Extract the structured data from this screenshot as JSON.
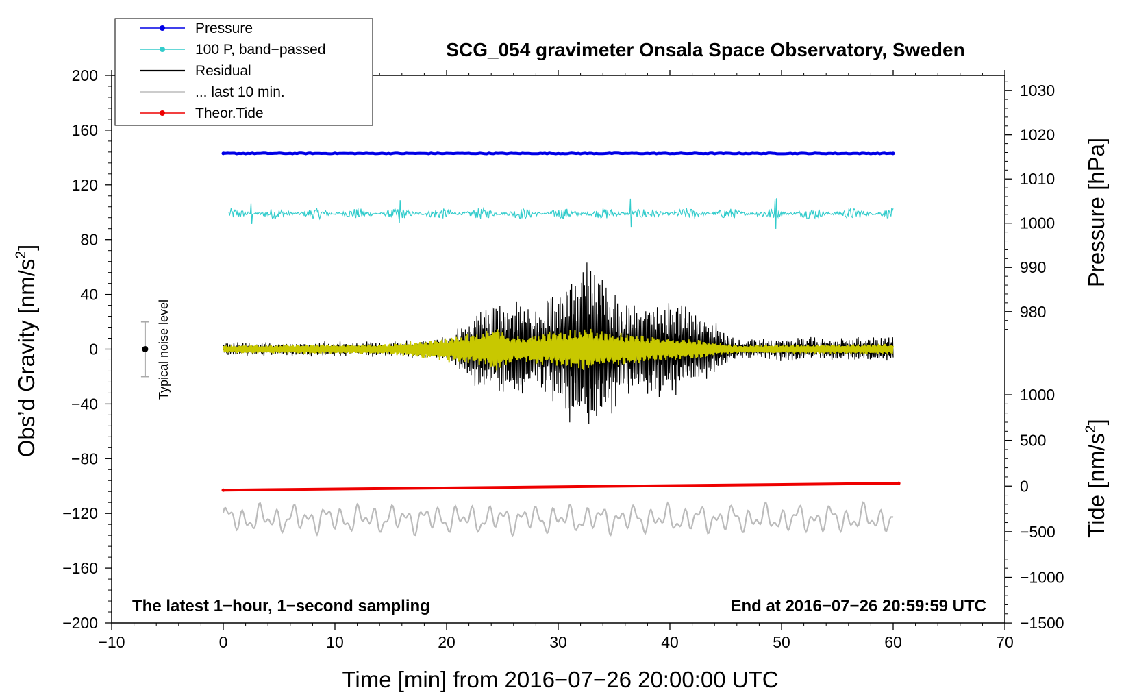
{
  "chart_data": {
    "type": "line",
    "title": "SCG_054 gravimeter Onsala Space Observatory, Sweden",
    "xlabel": "Time [min] from 2016−07−26 20:00:00 UTC",
    "ylabel_main": "Obs’d Gravity [nm/s",
    "ylabel_pressure": "Pressure [hPa]",
    "ylabel_tide": "Tide [nm/s",
    "unit_superscript": "2",
    "unit_close": "]",
    "xlim": [
      -10,
      70
    ],
    "ylim": [
      -200,
      200
    ],
    "x_ticks": [
      -10,
      0,
      10,
      20,
      30,
      40,
      50,
      60,
      70
    ],
    "x_tick_labels": [
      "−10",
      "0",
      "10",
      "20",
      "30",
      "40",
      "50",
      "60",
      "70"
    ],
    "y_ticks": [
      200,
      160,
      120,
      80,
      40,
      0,
      -40,
      -80,
      -120,
      -160,
      -200
    ],
    "y_tick_labels": [
      "200",
      "160",
      "120",
      "80",
      "40",
      "0",
      "−40",
      "−80",
      "−120",
      "−160",
      "−200"
    ],
    "pressure_ticks": [
      1030,
      1020,
      1010,
      1000,
      990,
      980
    ],
    "pressure_tick_labels": [
      "1030",
      "1020",
      "1010",
      "1000",
      "990",
      "980"
    ],
    "pressure_axis_map": {
      "value_at_zero": 951,
      "units_per_value": 3.23
    },
    "tide_ticks": [
      1000,
      500,
      0,
      -500,
      -1000,
      -1500
    ],
    "tide_tick_labels": [
      "1000",
      "500",
      "0",
      "−500",
      "−1000",
      "−1500"
    ],
    "tide_axis_map": {
      "value_at_zero": -100,
      "units_per_value": 0.0667
    },
    "legend": {
      "position": "top-left",
      "entries": [
        {
          "label": "Pressure",
          "color": "#0000e6",
          "marker": true
        },
        {
          "label": "100 P, band−passed",
          "color": "#33cccc",
          "marker": true
        },
        {
          "label": "Residual",
          "color": "#000000",
          "marker": false
        },
        {
          "label": "... last 10 min.",
          "color": "#bbbbbb",
          "marker": false
        },
        {
          "label": "Theor.Tide",
          "color": "#ee0000",
          "marker": true
        }
      ]
    },
    "noise_label": "Typical noise level",
    "noise_bar": {
      "x": -7,
      "center": 0,
      "half_range": 20
    },
    "bottom_left_text": "The latest 1−hour, 1−second sampling",
    "bottom_right_text": "End at 2016−07−26 20:59:59 UTC",
    "series": [
      {
        "name": "Pressure",
        "color": "#0000e6",
        "values_approx": {
          "x": [
            0,
            60
          ],
          "level": 143,
          "hpa": 1016
        }
      },
      {
        "name": "100 P, band−passed",
        "color": "#33cccc",
        "values_approx": {
          "x": [
            0.5,
            60
          ],
          "level": 99,
          "amplitude": 4,
          "spikes": [
            [
              2.5,
              7
            ],
            [
              15.8,
              9
            ],
            [
              36.5,
              10
            ],
            [
              49.5,
              14
            ]
          ]
        }
      },
      {
        "name": "Residual",
        "color": "#000000",
        "values_approx": {
          "x": [
            0,
            60
          ],
          "level": 0,
          "envelope": [
            [
              0,
              4
            ],
            [
              15,
              5
            ],
            [
              20.5,
              10
            ],
            [
              23,
              32
            ],
            [
              26,
              38
            ],
            [
              28,
              28
            ],
            [
              31,
              55
            ],
            [
              32.5,
              70
            ],
            [
              34,
              58
            ],
            [
              36,
              35
            ],
            [
              40,
              38
            ],
            [
              42.5,
              30
            ],
            [
              44,
              20
            ],
            [
              46,
              6
            ],
            [
              50,
              8
            ],
            [
              60,
              9
            ]
          ]
        }
      },
      {
        "name": "Residual filtered",
        "color": "#c8c800",
        "values_approx": {
          "x": [
            0,
            60
          ],
          "level": 0,
          "envelope": [
            [
              0,
              3
            ],
            [
              15,
              4
            ],
            [
              20.5,
              10
            ],
            [
              23,
              13
            ],
            [
              24.5,
              18
            ],
            [
              26,
              10
            ],
            [
              30,
              14
            ],
            [
              32,
              17
            ],
            [
              34,
              14
            ],
            [
              38,
              10
            ],
            [
              42,
              8
            ],
            [
              46,
              3
            ],
            [
              60,
              4
            ]
          ]
        }
      },
      {
        "name": "... last 10 min.",
        "color": "#bbbbbb",
        "values_approx": {
          "x": [
            0,
            60
          ],
          "level": -124,
          "amplitude": 8
        }
      },
      {
        "name": "Theor.Tide",
        "color": "#ee0000",
        "values": {
          "x": [
            0,
            60.5
          ],
          "y": [
            -103,
            -98
          ]
        }
      }
    ]
  }
}
